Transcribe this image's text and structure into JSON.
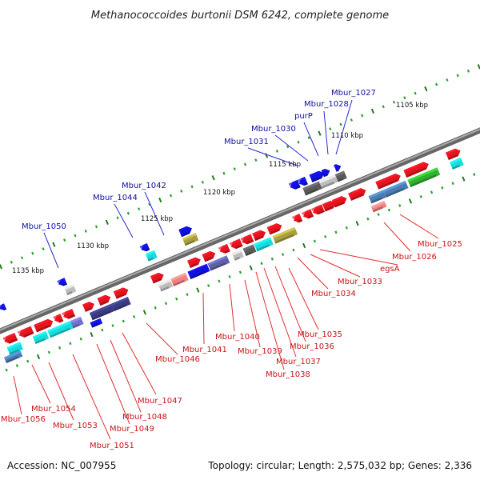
{
  "title": "Methanococcoides burtonii DSM 6242, complete genome",
  "footer": {
    "accession": "Accession: NC_007955",
    "topology": "Topology: circular; Length: 2,575,032 bp; Genes: 2,336"
  },
  "colors": {
    "backbone": "#777777",
    "tick_major": "#1b7d1b",
    "tick_minor": "#2aa12a",
    "label_top": "#1010a0",
    "label_bottom": "#c81414",
    "leader_top": "#2a2ad0",
    "leader_bottom": "#e03030"
  },
  "kbp_labels": [
    "1105 kbp",
    "1110 kbp",
    "1115 kbp",
    "1120 kbp",
    "1125 kbp",
    "1130 kbp",
    "1135 kbp"
  ],
  "top_labels": [
    "Mbur_1027",
    "Mbur_1028",
    "purP",
    "Mbur_1030",
    "Mbur_1031",
    "Mbur_1042",
    "Mbur_1044",
    "Mbur_1050"
  ],
  "bottom_labels": [
    "Mbur_1025",
    "Mbur_1026",
    "egsA",
    "Mbur_1033",
    "Mbur_1034",
    "Mbur_1035",
    "Mbur_1036",
    "Mbur_1037",
    "Mbur_1038",
    "Mbur_1039",
    "Mbur_1040",
    "Mbur_1041",
    "Mbur_1046",
    "Mbur_1047",
    "Mbur_1048",
    "Mbur_1049",
    "Mbur_1051",
    "Mbur_1053",
    "Mbur_1054",
    "Mbur_1056"
  ]
}
